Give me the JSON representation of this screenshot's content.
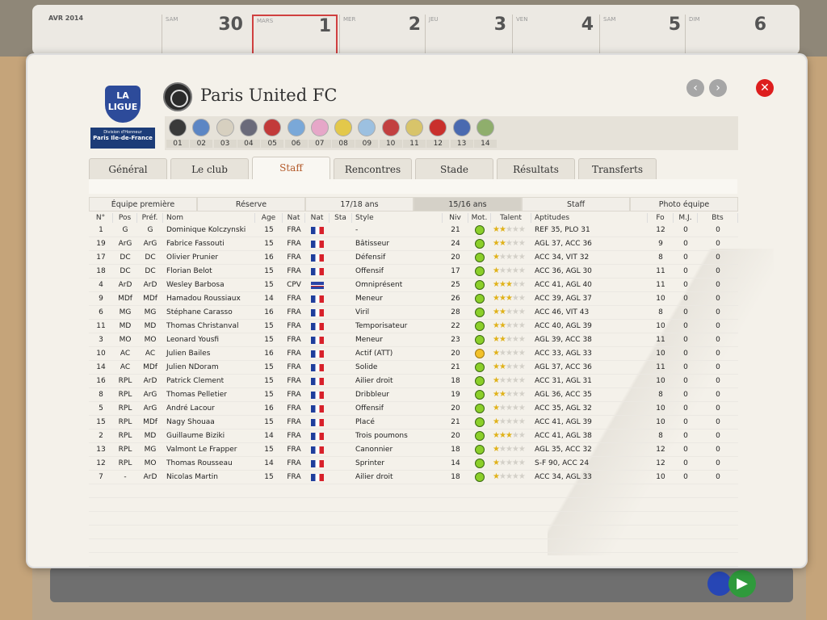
{
  "calendar": {
    "month": "AVR 2014",
    "days": [
      {
        "label": "SAM",
        "num": "30"
      },
      {
        "label": "MARS",
        "num": "1"
      },
      {
        "label": "MER",
        "num": "2"
      },
      {
        "label": "JEU",
        "num": "3"
      },
      {
        "label": "VEN",
        "num": "4"
      },
      {
        "label": "SAM",
        "num": "5"
      },
      {
        "label": "DIM",
        "num": "6"
      }
    ]
  },
  "league": {
    "logo_text": "LA LIGUE",
    "line1": "Division d'Honneur",
    "line2": "Paris Ile-de-France"
  },
  "club": {
    "name": "Paris United FC"
  },
  "nav": {
    "prev": "‹",
    "next": "›",
    "close": "✕"
  },
  "clubs_strip": [
    {
      "num": "01",
      "color": "#3a3a3a"
    },
    {
      "num": "02",
      "color": "#5c86c4"
    },
    {
      "num": "03",
      "color": "#d7d0c0"
    },
    {
      "num": "04",
      "color": "#6a6a7a"
    },
    {
      "num": "05",
      "color": "#c23a3a"
    },
    {
      "num": "06",
      "color": "#7aa8d8"
    },
    {
      "num": "07",
      "color": "#e6a7c8"
    },
    {
      "num": "08",
      "color": "#e3c84a"
    },
    {
      "num": "09",
      "color": "#9cc0e0"
    },
    {
      "num": "10",
      "color": "#c24040"
    },
    {
      "num": "11",
      "color": "#d8c46a"
    },
    {
      "num": "12",
      "color": "#c9302c"
    },
    {
      "num": "13",
      "color": "#4a6ab0"
    },
    {
      "num": "14",
      "color": "#8fae6c"
    }
  ],
  "tabs": [
    "Général",
    "Le club",
    "Staff",
    "Rencontres",
    "Stade",
    "Résultats",
    "Transferts"
  ],
  "active_tab": "Staff",
  "subtabs": [
    "Équipe première",
    "Réserve",
    "17/18 ans",
    "15/16 ans",
    "Staff",
    "Photo équipe"
  ],
  "active_subtab": "15/16 ans",
  "columns": [
    "N°",
    "Pos",
    "Préf.",
    "Nom",
    "Age",
    "Nat",
    "Nat",
    "Sta",
    "Style",
    "Niv",
    "Mot.",
    "Talent",
    "Aptitudes",
    "Fo",
    "M.J.",
    "Bts"
  ],
  "players": [
    {
      "n": "1",
      "pos": "G",
      "pref": "G",
      "nom": "Dominique Kolczynski",
      "age": "15",
      "nat": "FRA",
      "flag": "fr",
      "style": "-",
      "niv": "21",
      "mot": "green",
      "talent": 1.5,
      "apt": "REF 35, PLO 31",
      "fo": "12",
      "mj": "0",
      "bts": "0"
    },
    {
      "n": "19",
      "pos": "ArG",
      "pref": "ArG",
      "nom": "Fabrice Fassouti",
      "age": "15",
      "nat": "FRA",
      "flag": "fr",
      "style": "Bâtisseur",
      "niv": "24",
      "mot": "green",
      "talent": 2,
      "apt": "AGL 37, ACC 36",
      "fo": "9",
      "mj": "0",
      "bts": "0"
    },
    {
      "n": "17",
      "pos": "DC",
      "pref": "DC",
      "nom": "Olivier Prunier",
      "age": "16",
      "nat": "FRA",
      "flag": "fr",
      "style": "Défensif",
      "niv": "20",
      "mot": "green",
      "talent": 1,
      "apt": "ACC 34, VIT 32",
      "fo": "8",
      "mj": "0",
      "bts": "0"
    },
    {
      "n": "18",
      "pos": "DC",
      "pref": "DC",
      "nom": "Florian Belot",
      "age": "15",
      "nat": "FRA",
      "flag": "fr",
      "style": "Offensif",
      "niv": "17",
      "mot": "green",
      "talent": 1,
      "apt": "ACC 36, AGL 30",
      "fo": "11",
      "mj": "0",
      "bts": "0"
    },
    {
      "n": "4",
      "pos": "ArD",
      "pref": "ArD",
      "nom": "Wesley Barbosa",
      "age": "15",
      "nat": "CPV",
      "flag": "cv",
      "style": "Omniprésent",
      "niv": "25",
      "mot": "green",
      "talent": 2.5,
      "apt": "ACC 41, AGL 40",
      "fo": "11",
      "mj": "0",
      "bts": "0"
    },
    {
      "n": "9",
      "pos": "MDf",
      "pref": "MDf",
      "nom": "Hamadou Roussiaux",
      "age": "14",
      "nat": "FRA",
      "flag": "fr",
      "style": "Meneur",
      "niv": "26",
      "mot": "green",
      "talent": 2.5,
      "apt": "ACC 39, AGL 37",
      "fo": "10",
      "mj": "0",
      "bts": "0"
    },
    {
      "n": "6",
      "pos": "MG",
      "pref": "MG",
      "nom": "Stéphane Carasso",
      "age": "16",
      "nat": "FRA",
      "flag": "fr",
      "style": "Viril",
      "niv": "28",
      "mot": "green",
      "talent": 2,
      "apt": "ACC 46, VIT 43",
      "fo": "8",
      "mj": "0",
      "bts": "0"
    },
    {
      "n": "11",
      "pos": "MD",
      "pref": "MD",
      "nom": "Thomas Christanval",
      "age": "15",
      "nat": "FRA",
      "flag": "fr",
      "style": "Temporisateur",
      "niv": "22",
      "mot": "green",
      "talent": 1.5,
      "apt": "ACC 40, AGL 39",
      "fo": "10",
      "mj": "0",
      "bts": "0"
    },
    {
      "n": "3",
      "pos": "MO",
      "pref": "MO",
      "nom": "Leonard Yousfi",
      "age": "15",
      "nat": "FRA",
      "flag": "fr",
      "style": "Meneur",
      "niv": "23",
      "mot": "green",
      "talent": 2,
      "apt": "AGL 39, ACC 38",
      "fo": "11",
      "mj": "0",
      "bts": "0"
    },
    {
      "n": "10",
      "pos": "AC",
      "pref": "AC",
      "nom": "Julien Bailes",
      "age": "16",
      "nat": "FRA",
      "flag": "fr",
      "style": "Actif (ATT)",
      "niv": "20",
      "mot": "yellow",
      "talent": 1,
      "apt": "ACC 33, AGL 33",
      "fo": "10",
      "mj": "0",
      "bts": "0"
    },
    {
      "n": "14",
      "pos": "AC",
      "pref": "MDf",
      "nom": "Julien NDoram",
      "age": "15",
      "nat": "FRA",
      "flag": "fr",
      "style": "Solide",
      "niv": "21",
      "mot": "green",
      "talent": 2,
      "apt": "AGL 37, ACC 36",
      "fo": "11",
      "mj": "0",
      "bts": "0"
    },
    {
      "n": "16",
      "pos": "RPL",
      "pref": "ArD",
      "nom": "Patrick Clement",
      "age": "15",
      "nat": "FRA",
      "flag": "fr",
      "style": "Ailier droit",
      "niv": "18",
      "mot": "green",
      "talent": 0.5,
      "apt": "ACC 31, AGL 31",
      "fo": "10",
      "mj": "0",
      "bts": "0"
    },
    {
      "n": "8",
      "pos": "RPL",
      "pref": "ArG",
      "nom": "Thomas Pelletier",
      "age": "15",
      "nat": "FRA",
      "flag": "fr",
      "style": "Dribbleur",
      "niv": "19",
      "mot": "green",
      "talent": 1.5,
      "apt": "AGL 36, ACC 35",
      "fo": "8",
      "mj": "0",
      "bts": "0"
    },
    {
      "n": "5",
      "pos": "RPL",
      "pref": "ArG",
      "nom": "André Lacour",
      "age": "16",
      "nat": "FRA",
      "flag": "fr",
      "style": "Offensif",
      "niv": "20",
      "mot": "green",
      "talent": 1,
      "apt": "ACC 35, AGL 32",
      "fo": "10",
      "mj": "0",
      "bts": "0"
    },
    {
      "n": "15",
      "pos": "RPL",
      "pref": "MDf",
      "nom": "Nagy Shouaa",
      "age": "15",
      "nat": "FRA",
      "flag": "fr",
      "style": "Placé",
      "niv": "21",
      "mot": "green",
      "talent": 1,
      "apt": "ACC 41, AGL 39",
      "fo": "10",
      "mj": "0",
      "bts": "0"
    },
    {
      "n": "2",
      "pos": "RPL",
      "pref": "MD",
      "nom": "Guillaume Biziki",
      "age": "14",
      "nat": "FRA",
      "flag": "fr",
      "style": "Trois poumons",
      "niv": "20",
      "mot": "green",
      "talent": 2.5,
      "apt": "ACC 41, AGL 38",
      "fo": "8",
      "mj": "0",
      "bts": "0"
    },
    {
      "n": "13",
      "pos": "RPL",
      "pref": "MG",
      "nom": "Valmont Le Frapper",
      "age": "15",
      "nat": "FRA",
      "flag": "fr",
      "style": "Canonnier",
      "niv": "18",
      "mot": "green",
      "talent": 1,
      "apt": "AGL 35, ACC 32",
      "fo": "12",
      "mj": "0",
      "bts": "0"
    },
    {
      "n": "12",
      "pos": "RPL",
      "pref": "MO",
      "nom": "Thomas Rousseau",
      "age": "14",
      "nat": "FRA",
      "flag": "fr",
      "style": "Sprinter",
      "niv": "14",
      "mot": "green",
      "talent": 0.5,
      "apt": "S-F 90, ACC 24",
      "fo": "12",
      "mj": "0",
      "bts": "0"
    },
    {
      "n": "7",
      "pos": "-",
      "pref": "ArD",
      "nom": "Nicolas Martin",
      "age": "15",
      "nat": "FRA",
      "flag": "fr",
      "style": "Ailier droit",
      "niv": "18",
      "mot": "green",
      "talent": 1,
      "apt": "ACC 34, AGL 33",
      "fo": "10",
      "mj": "0",
      "bts": "0"
    }
  ],
  "colors": {
    "mot_green": "#8ccf2a",
    "mot_yellow": "#f2c12a",
    "star": "#e0b21a",
    "active_tab_text": "#b35a2a"
  }
}
